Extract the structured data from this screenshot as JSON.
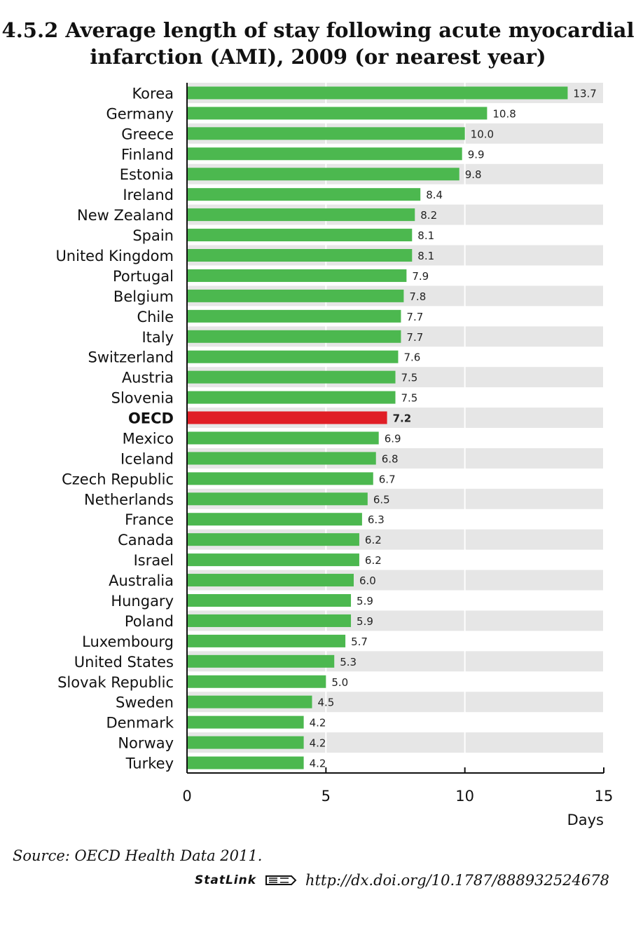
{
  "header": {
    "title_line1": "4.5.2  Average length of stay following acute myocardial",
    "title_line2": "infarction (AMI), 2009 (or nearest year)"
  },
  "chart_data": {
    "type": "bar",
    "orientation": "horizontal",
    "categories": [
      "Korea",
      "Germany",
      "Greece",
      "Finland",
      "Estonia",
      "Ireland",
      "New Zealand",
      "Spain",
      "United Kingdom",
      "Portugal",
      "Belgium",
      "Chile",
      "Italy",
      "Switzerland",
      "Austria",
      "Slovenia",
      "OECD",
      "Mexico",
      "Iceland",
      "Czech Republic",
      "Netherlands",
      "France",
      "Canada",
      "Israel",
      "Australia",
      "Hungary",
      "Poland",
      "Luxembourg",
      "United States",
      "Slovak Republic",
      "Sweden",
      "Denmark",
      "Norway",
      "Turkey"
    ],
    "values": [
      13.7,
      10.8,
      10.0,
      9.9,
      9.8,
      8.4,
      8.2,
      8.1,
      8.1,
      7.9,
      7.8,
      7.7,
      7.7,
      7.6,
      7.5,
      7.5,
      7.2,
      6.9,
      6.8,
      6.7,
      6.5,
      6.3,
      6.2,
      6.2,
      6.0,
      5.9,
      5.9,
      5.7,
      5.3,
      5.0,
      4.5,
      4.2,
      4.2,
      4.2
    ],
    "value_labels": [
      "13.7",
      "10.8",
      "10.0",
      "9.9",
      "9.8",
      "8.4",
      "8.2",
      "8.1",
      "8.1",
      "7.9",
      "7.8",
      "7.7",
      "7.7",
      "7.6",
      "7.5",
      "7.5",
      "7.2",
      "6.9",
      "6.8",
      "6.7",
      "6.5",
      "6.3",
      "6.2",
      "6.2",
      "6.0",
      "5.9",
      "5.9",
      "5.7",
      "5.3",
      "5.0",
      "4.5",
      "4.2",
      "4.2",
      "4.2"
    ],
    "highlight_category": "OECD",
    "xlabel": "Days",
    "xlim": [
      0,
      15
    ],
    "xticks": [
      "0",
      "5",
      "10",
      "15"
    ],
    "grid": true,
    "colors": {
      "bar": "#4cb84f",
      "highlight": "#e01e26",
      "band": "#e6e6e6"
    }
  },
  "footer": {
    "source": "Source:  OECD Health Data 2011.",
    "statlink_brand": "StatLink",
    "statlink_icon": "statlink-logo-icon",
    "statlink_url": "http://dx.doi.org/10.1787/888932524678"
  }
}
